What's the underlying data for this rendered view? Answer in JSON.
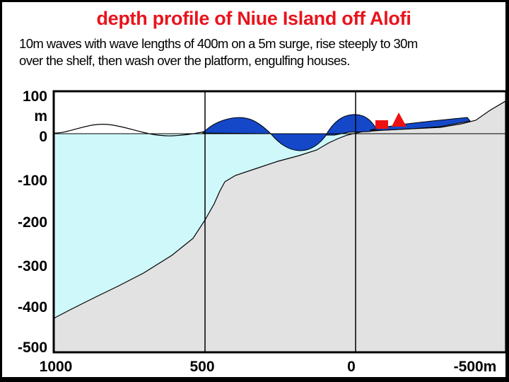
{
  "title": "depth profile of Niue Island off Alofi",
  "subtitle_lines": [
    "10m waves with wave lengths of 400m on a 5m surge, rise steeply to 30m",
    "over the shelf, then wash over the platform, engulfing houses."
  ],
  "y_ticks": [
    "100",
    "m",
    "0",
    "-100",
    "-200",
    "-300",
    "-400",
    "-500"
  ],
  "x_ticks": [
    "1000",
    "500",
    "0",
    "-500m"
  ],
  "colors": {
    "title": "#e8141c",
    "sea": "#cff8fb",
    "land": "#e2e2e2",
    "wave": "#1448c8",
    "house": "#ee1111",
    "axes": "#000000"
  },
  "icons": {
    "house_square": "red-square",
    "house_roof": "red-triangle"
  }
}
